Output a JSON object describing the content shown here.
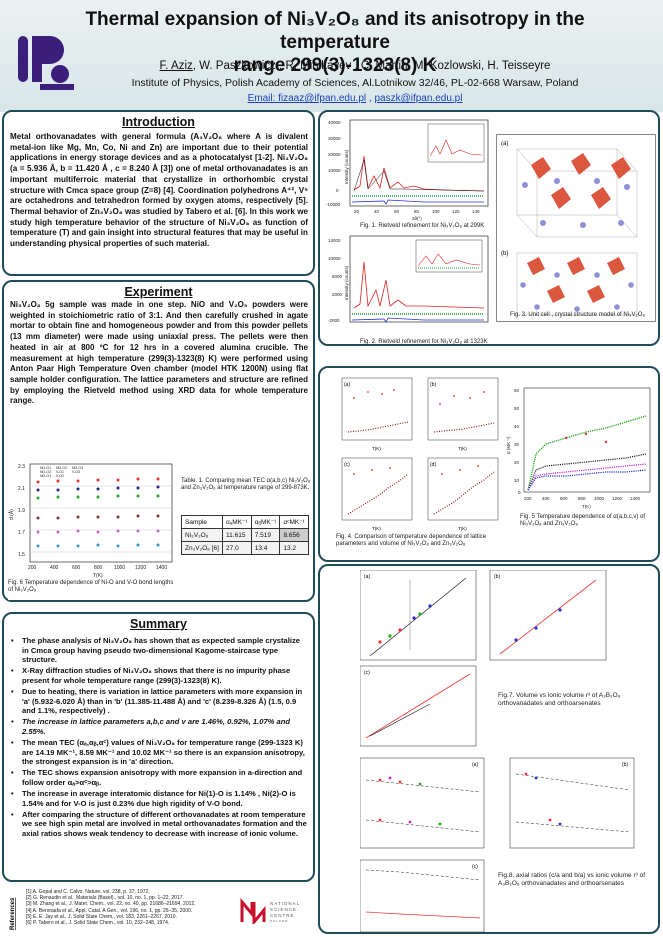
{
  "header": {
    "title_line1": "Thermal expansion of Ni₃V₂O₈ and its anisotropy in the temperature",
    "title_line2": "range 299(3)-1323(8) K",
    "authors_lead": "F. Aziz",
    "authors_rest": ", W. Paszkowicz , R. Minikayev , C. Martin, M. Kozlowski, H. Teisseyre",
    "institution": "Institute of Physics, Polish Academy of Sciences, Al.Lotnikow 32/46, PL-02-668 Warsaw, Poland",
    "email_label": "Email: ",
    "email1": "fizaaz@ifpan.edu.pl",
    "email_sep": " , ",
    "email2": "paszk@ifpan.edu.pl"
  },
  "logo": {
    "text": "IFPAN",
    "color": "#3b1f7a"
  },
  "introduction": {
    "heading": "Introduction",
    "text": "Metal orthovanadates with general formula (A₃V₂O₈ where A is divalent metal-ion like Mg, Mn, Co, Ni and Zn) are important due to their potential applications in energy storage devices and as a photocatalyst [1-2]. Ni₃V₂O₈ (a = 5.936 Å, b = 11.420 Å , c = 8.240 Å [3]) one of metal orthovanadates is an important multiferroic material that crystallize in orthorhombic crystal structure with Cmca space group (Z=8) [4]. Coordination polyhedrons A⁺², V⁵ are octahedrons and tetrahedron formed by oxygen atoms, respectively [5]. Thermal behavior of Zn₃V₂O₈ was studied by Tabero et al. [6]. In this work we study high temperature behavior of the structure of Ni₃V₂O₈ as function of temperature (T) and gain insight into structural features that may be useful in understanding physical properties of such material."
  },
  "experiment": {
    "heading": "Experiment",
    "text": "Ni₃V₂O₈ 5g sample was made in one step. NiO and V₂O₅ powders were weighted in stoichiometric ratio of 3:1. And then carefully crushed in agate mortar to obtain fine and homogeneous powder and from this powder pellets (13 mm diameter) were made using uniaxial press. The pellets were then heated in air at 800 ºC for 12 hrs in a covered alumina crucible. The measurement at high temperature (299(3)-1323(8) K) were performed using Anton Paar High Temperature Oven chamber (model HTK 1200N) using flat sample holder configuration. The lattice parameters and structure are refined by employing the Rietveld method using XRD data for whole temperature range."
  },
  "fig6": {
    "caption": "Fig. 6 Temperature dependence of Ni-O and V-O bond lengths of Ni₃V₂O₈",
    "ylabel": "d (Å)",
    "xlabel": "T(K)",
    "yticks": [
      "2.3",
      "2.1",
      "1.9",
      "1.7",
      "1.5"
    ],
    "xticks": [
      "200",
      "400",
      "600",
      "800",
      "1000",
      "1200",
      "1400"
    ],
    "legend": [
      "Ni1-O1",
      "Ni1-O2",
      "Ni2-O1",
      "Ni2-O2",
      "V-O1",
      "V-O2",
      "Ni2-O3",
      "V-O3"
    ]
  },
  "table1": {
    "caption": "Table. 1. Comparing mean TEC α(a,b,c) Ni₃V₂O₈ and Zn₃V₂O₈ at temperature range of 299-873K.",
    "headers": [
      "Sample",
      "αₐMK⁻¹",
      "αᵦMK⁻¹",
      "αᶜMK⁻¹"
    ],
    "rows": [
      [
        "Ni₃V₂O₈",
        "11.615",
        "7.519",
        "8.656"
      ],
      [
        "Zn₃V₂O₈ [6]",
        "27.0",
        "13.4",
        "13.2"
      ]
    ]
  },
  "summary": {
    "heading": "Summary",
    "items": [
      "The phase analysis of Ni₃V₂O₈ has shown that as expected sample crystalize in Cmca group having pseudo two-dimensional Kagome-staircase type structure.",
      "X-Ray diffraction studies of Ni₃V₂O₈ shows that there is no impurity phase present for whole temperature range (299(3)-1323(8) K).",
      "Due to heating, there is variation in lattice parameters with more expansion in 'a' (5.932-6.020 Å) than in 'b' (11.385-11.488 Å) and 'c' (8.239-8.326 Å) (1.5, 0.9 and 1.1%, respectively) .",
      "The increase in lattice parameters a,b,c and v are 1.46%, 0.92%, 1.07% and 2.55%.",
      "The mean TEC (αₐ,αᵦ,αᶜ) values of Ni₃V₂O₈ for temperature range (299-1323 K) are 14.19 MK⁻¹, 8.59 MK⁻¹ and 10.02 MK⁻¹ so there is an expansion anisotropy, the strongest expansion is in 'a' direction.",
      "The TEC shows expansion anisotropy with more expansion in a-direction and follow order αₐ>αᶜ>αᵦ.",
      "The increase in average interatomic distance for Ni(1)-O is 1.14% , Ni(2)-O is 1.54% and for V-O is just 0.23% due high rigidity of V-O bond.",
      "After comparing the structure of different orthovanadates at room temperature we see high spin metal are involved in metal orthovanadates formation and the axial ratios shows weak tendency to decrease with increase of ionic volume."
    ]
  },
  "references": {
    "label": "References",
    "items": [
      "[1] A. Gopal and C. Calvo, Nature, vol. 238, p. 37, 1972.",
      "[2] G. Renaudin et al., Materials (Basel)., vol. 10, no. 1, pp. 1–22, 2017.",
      "[3] M. Zhang et al., J. Mater. Chem., vol. 22, no. 40, pp. 21686–21694, 2012.",
      "[4] A. Beroraafa et al., Appl. Catal. A Gen., vol. 196, no. 1, pp. 25–35, 2000.",
      "[5] E. E. Jay et al., J. Solid State Chem., vol. 183, 2261–2267, 2010.",
      "[6] P. Tabero et al., J. Solid State Chem., vol. 10, 232–248, 1974."
    ]
  },
  "ncn_logo": {
    "line1": "NATIONAL",
    "line2": "SCIENCE",
    "line3": "CENTRE",
    "line4": "POLAND",
    "color": "#c8102e"
  },
  "fig1": {
    "caption": "Fig. 1. Rietveld refinement for Ni₃V₂O₈ at 299K",
    "ylabel": "Intensity (counts)",
    "xlabel": "2θ(°)",
    "yticks": [
      "40000",
      "30000",
      "20000",
      "10000",
      "0",
      "-10000"
    ],
    "xticks": [
      "20",
      "40",
      "60",
      "80",
      "100",
      "120",
      "140"
    ]
  },
  "fig2": {
    "caption": "Fig. 2. Rietveld refinement for Ni₃V₂O₈ at 1323K",
    "ylabel": "Intensity (counts)",
    "xlabel": "2θ(°)",
    "yticks": [
      "14000",
      "10000",
      "6000",
      "2000",
      "-2000"
    ],
    "xticks": [
      "20",
      "40",
      "60",
      "80",
      "100",
      "120",
      "140"
    ]
  },
  "fig3": {
    "caption": "Fig. 3. Unit cell , crystal structure model of Ni₃V₂O₈",
    "panel_a": "(a)",
    "panel_b": "(b)"
  },
  "fig4": {
    "caption": "Fig. 4. Comparison of temperature dependence of lattice parameters and volume of Ni₃V₂O₈ and Zn₃V₂O₈",
    "panels": [
      "(a)",
      "(b)",
      "(c)",
      "(d)"
    ],
    "xlabel": "T(K)"
  },
  "fig5": {
    "caption": "Fig. 5 Temperature dependence of α(a,b,c,v) of Ni₃V₂O₈ and Zn₃V₂O₈",
    "ylabel": "α (MK⁻¹)",
    "xlabel": "T(K)",
    "yticks": [
      "60",
      "50",
      "40",
      "30",
      "20",
      "10",
      "0"
    ],
    "xticks": [
      "200",
      "400",
      "600",
      "800",
      "1000",
      "1200",
      "1400"
    ]
  },
  "fig7": {
    "caption": "Fig.7. Volume vs ionic volume r³ of A₃B₂O₈ orthovanadates and orthoarsenates",
    "panels": [
      "(a)",
      "(b)",
      "(c)"
    ]
  },
  "fig8": {
    "caption": "Fig.8. axial ratios (c/a and b/a) vs ionic volume r³ of A₃B₂O₈ orthovanadates and orthoarsenates",
    "panels": [
      "(a)",
      "(b)",
      "(c)"
    ]
  },
  "colors": {
    "border": "#1f4d57",
    "header_bg": "#dde9eb",
    "link": "#1a3fbf"
  }
}
